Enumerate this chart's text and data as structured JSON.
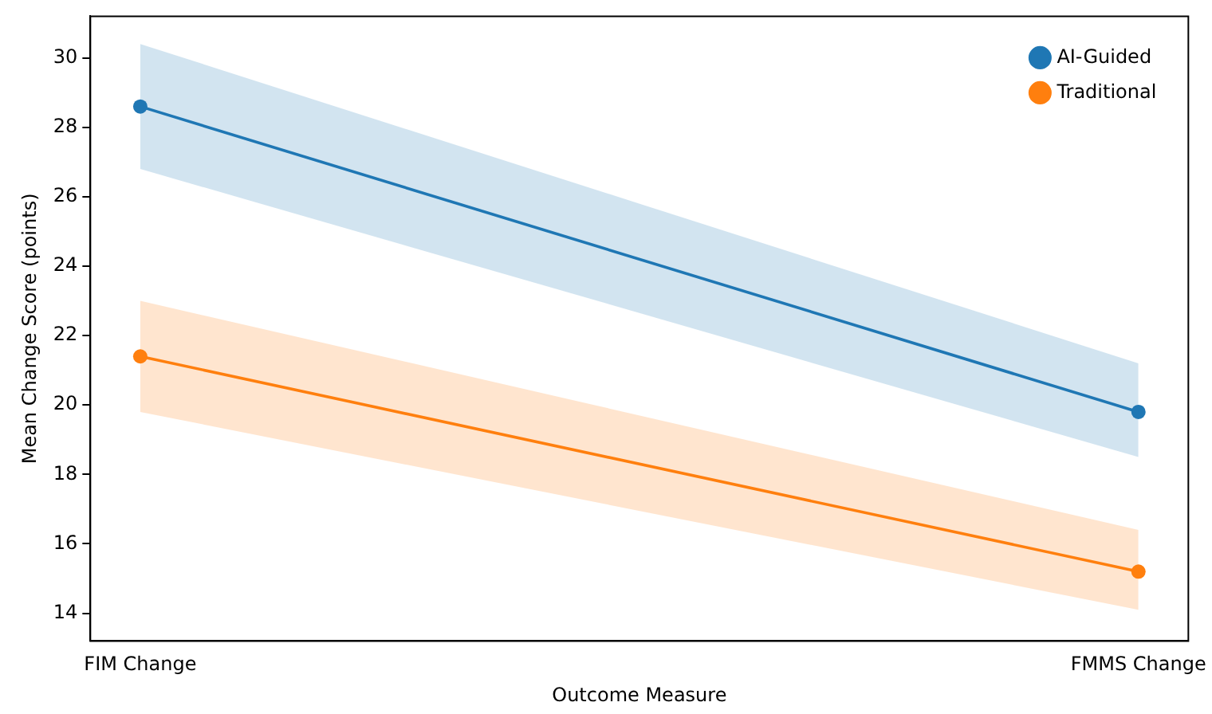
{
  "chart_data": {
    "type": "line",
    "xlabel": "Outcome Measure",
    "ylabel": "Mean Change Score (points)",
    "categories": [
      "FIM Change",
      "FMMS Change"
    ],
    "series": [
      {
        "name": "AI-Guided",
        "color": "#1f77b4",
        "values": [
          28.6,
          19.8
        ],
        "lower": [
          26.8,
          18.5
        ],
        "upper": [
          30.4,
          21.2
        ]
      },
      {
        "name": "Traditional",
        "color": "#ff7f0e",
        "values": [
          21.4,
          15.2
        ],
        "lower": [
          19.8,
          14.1
        ],
        "upper": [
          23.0,
          16.4
        ]
      }
    ],
    "ylim": [
      13.2,
      31.2
    ],
    "yticks": [
      14,
      16,
      18,
      20,
      22,
      24,
      26,
      28,
      30
    ],
    "grid": false,
    "legend": "top right",
    "marker": "circle",
    "line_style": "solid"
  }
}
